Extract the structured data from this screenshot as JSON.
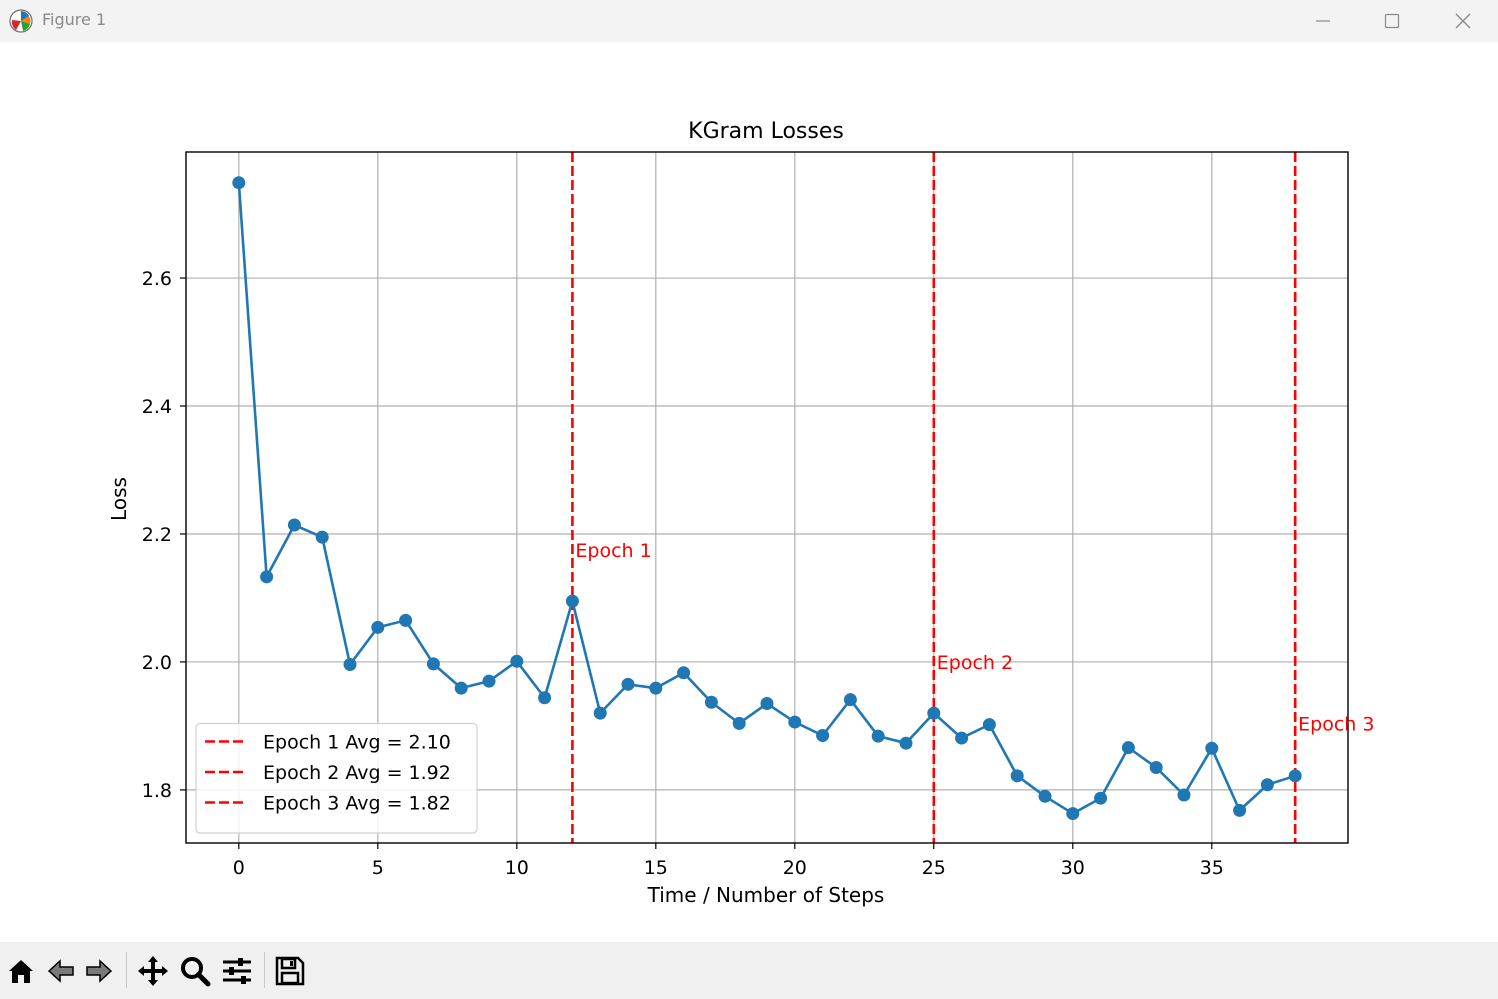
{
  "window": {
    "title": "Figure 1"
  },
  "toolbar": {
    "tools": [
      "home-icon",
      "back-arrow-icon",
      "forward-arrow-icon",
      "pan-move-icon",
      "zoom-magnifier-icon",
      "subplots-sliders-icon",
      "save-floppy-icon"
    ]
  },
  "chart_data": {
    "type": "line",
    "title": "KGram Losses",
    "xlabel": "Time / Number of Steps",
    "ylabel": "Loss",
    "xlim": [
      -1.9,
      39.9
    ],
    "ylim": [
      1.717,
      2.797
    ],
    "xticks": [
      0,
      5,
      10,
      15,
      20,
      25,
      30,
      35
    ],
    "yticks": [
      1.8,
      2.0,
      2.2,
      2.4,
      2.6
    ],
    "ytick_labels": [
      "1.8",
      "2.0",
      "2.2",
      "2.4",
      "2.6"
    ],
    "grid": true,
    "series": [
      {
        "color": "#1f77b4",
        "marker": "circle",
        "x": [
          0,
          1,
          2,
          3,
          4,
          5,
          6,
          7,
          8,
          9,
          10,
          11,
          12,
          13,
          14,
          15,
          16,
          17,
          18,
          19,
          20,
          21,
          22,
          23,
          24,
          25,
          26,
          27,
          28,
          29,
          30,
          31,
          32,
          33,
          34,
          35,
          36,
          37,
          38
        ],
        "y": [
          2.749,
          2.133,
          2.214,
          2.195,
          1.996,
          2.054,
          2.065,
          1.997,
          1.959,
          1.97,
          2.001,
          1.944,
          2.095,
          1.92,
          1.965,
          1.959,
          1.983,
          1.937,
          1.904,
          1.935,
          1.906,
          1.885,
          1.941,
          1.884,
          1.873,
          1.92,
          1.881,
          1.902,
          1.822,
          1.79,
          1.763,
          1.787,
          1.866,
          1.835,
          1.792,
          1.865,
          1.768,
          1.808,
          1.822
        ]
      }
    ],
    "vlines": [
      {
        "x": 12,
        "label": "Epoch 1",
        "label_y": 2.175,
        "color": "#ff0000"
      },
      {
        "x": 25,
        "label": "Epoch 2",
        "label_y": 2.0,
        "color": "#ff0000"
      },
      {
        "x": 38,
        "label": "Epoch 3",
        "label_y": 1.904,
        "color": "#ff0000"
      }
    ],
    "legend": {
      "position": "lower left",
      "entries": [
        "Epoch 1 Avg = 2.10",
        "Epoch 2 Avg = 1.92",
        "Epoch 3 Avg = 1.82"
      ]
    }
  }
}
